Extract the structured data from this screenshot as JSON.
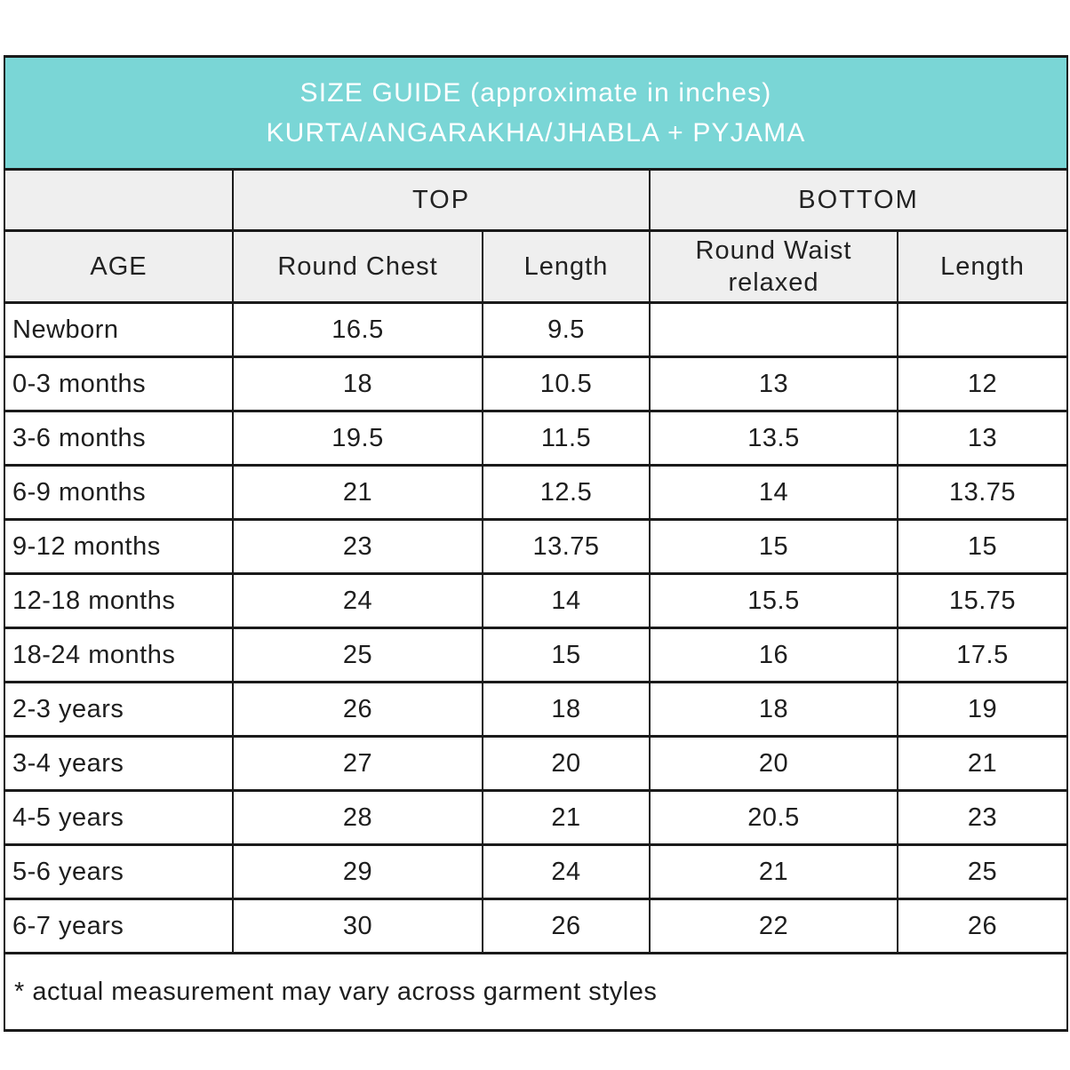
{
  "chart_data": {
    "type": "table",
    "title_line1": "SIZE GUIDE (approximate in inches)",
    "title_line2": "KURTA/ANGARAKHA/JHABLA + PYJAMA",
    "column_groups": {
      "top": "TOP",
      "bottom": "BOTTOM"
    },
    "columns": [
      "AGE",
      "Round Chest",
      "Length",
      "Round Waist relaxed",
      "Length"
    ],
    "rows": [
      [
        "Newborn",
        "16.5",
        "9.5",
        "",
        ""
      ],
      [
        "0-3 months",
        "18",
        "10.5",
        "13",
        "12"
      ],
      [
        "3-6 months",
        "19.5",
        "11.5",
        "13.5",
        "13"
      ],
      [
        "6-9 months",
        "21",
        "12.5",
        "14",
        "13.75"
      ],
      [
        "9-12 months",
        "23",
        "13.75",
        "15",
        "15"
      ],
      [
        "12-18 months",
        "24",
        "14",
        "15.5",
        "15.75"
      ],
      [
        "18-24 months",
        "25",
        "15",
        "16",
        "17.5"
      ],
      [
        "2-3 years",
        "26",
        "18",
        "18",
        "19"
      ],
      [
        "3-4 years",
        "27",
        "20",
        "20",
        "21"
      ],
      [
        "4-5 years",
        "28",
        "21",
        "20.5",
        "23"
      ],
      [
        "5-6 years",
        "29",
        "24",
        "21",
        "25"
      ],
      [
        "6-7 years",
        "30",
        "26",
        "22",
        "26"
      ]
    ],
    "footnote": "* actual measurement may vary across garment styles",
    "layout_hints": {
      "units": "inches",
      "grid": "on"
    }
  },
  "colors": {
    "accent_teal": "#7ad6d6",
    "header_row_bg": "#efefef",
    "row_bg": "#ffffff",
    "border": "#1a1a1a",
    "title_text": "#ffffff",
    "body_text": "#1e1e1e"
  }
}
